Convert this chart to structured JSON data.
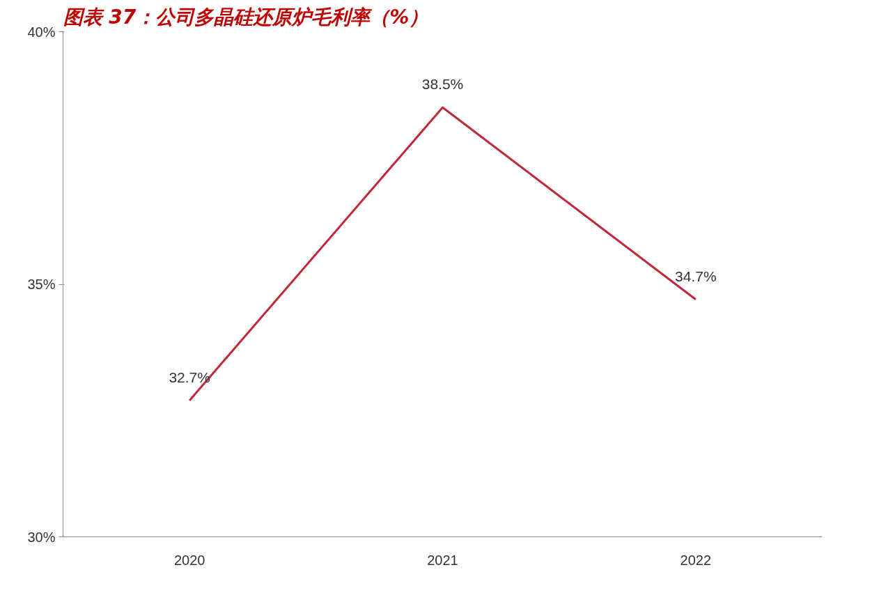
{
  "chart_data": {
    "type": "line",
    "title": "图表 37：公司多晶硅还原炉毛利率（%）",
    "categories": [
      "2020",
      "2021",
      "2022"
    ],
    "values": [
      32.7,
      38.5,
      34.7
    ],
    "color": "#c0283a",
    "value_labels": [
      "32.7%",
      "38.5%",
      "34.7%"
    ],
    "ylim": [
      30,
      40
    ],
    "yticks": [
      {
        "value": 30,
        "label": "30%"
      },
      {
        "value": 35,
        "label": "35%"
      },
      {
        "value": 40,
        "label": "40%"
      }
    ],
    "grid": false,
    "marker": "none",
    "line_style": "solid"
  }
}
